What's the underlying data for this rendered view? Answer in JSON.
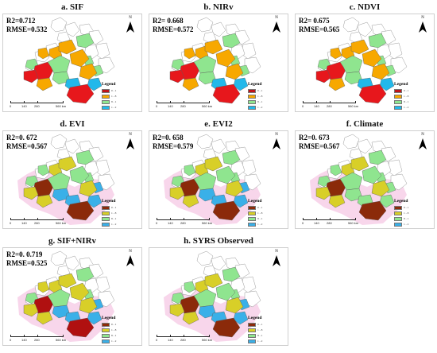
{
  "panels": [
    {
      "title": "a. SIF",
      "stats": [
        "R2=0.712",
        "RMSE=0.532"
      ],
      "colors": [
        "#e7171c",
        "#e7171c",
        "#8fe58f",
        "#f7a800",
        "#f7a800",
        "#8fe58f",
        "#8fe58f",
        "#f7a800",
        "#f7a800",
        "#22b8ea",
        "#22b8ea",
        "#e7171c"
      ],
      "pink": false
    },
    {
      "title": "b. NIRv",
      "stats": [
        "R2= 0.668",
        "RMSE=0.572"
      ],
      "colors": [
        "#e7171c",
        "#e7171c",
        "#8fe58f",
        "#f7a800",
        "#f7a800",
        "#8fe58f",
        "#8fe58f",
        "#f7a800",
        "#f7a800",
        "#22b8ea",
        "#22b8ea",
        "#e7171c"
      ],
      "pink": false
    },
    {
      "title": "c. NDVI",
      "stats": [
        "R2= 0.675",
        "RMSE=0.565"
      ],
      "colors": [
        "#e7171c",
        "#e7171c",
        "#8fe58f",
        "#f7a800",
        "#f7a800",
        "#8fe58f",
        "#8fe58f",
        "#f7a800",
        "#f7a800",
        "#22b8ea",
        "#22b8ea",
        "#e7171c"
      ],
      "pink": false
    },
    {
      "title": "d. EVI",
      "stats": [
        "R2=0. 672",
        "RMSE=0.567"
      ],
      "colors": [
        "#8b2a0a",
        "#d8cf28",
        "#8fe58f",
        "#8fe58f",
        "#d8cf28",
        "#8fe58f",
        "#3ab0e8",
        "#d8cf28",
        "#d8cf28",
        "#3ab0e8",
        "#3ab0e8",
        "#8b2a0a"
      ],
      "pink": true
    },
    {
      "title": "e. EVI2",
      "stats": [
        "R2=0. 658",
        "RMSE=0.579"
      ],
      "colors": [
        "#8b2a0a",
        "#d8cf28",
        "#8fe58f",
        "#8fe58f",
        "#d8cf28",
        "#8fe58f",
        "#3ab0e8",
        "#d8cf28",
        "#d8cf28",
        "#3ab0e8",
        "#3ab0e8",
        "#8b2a0a"
      ],
      "pink": true
    },
    {
      "title": "f. Climate",
      "stats": [
        "R2=0. 673",
        "RMSE=0.567"
      ],
      "colors": [
        "#8b2a0a",
        "#d8cf28",
        "#8fe58f",
        "#8fe58f",
        "#d8cf28",
        "#8fe58f",
        "#8fe58f",
        "#d8cf28",
        "#d8cf28",
        "#8fe58f",
        "#8fe58f",
        "#8b2a0a"
      ],
      "pink": true
    },
    {
      "title": "g. SIF+NIRv",
      "stats": [
        "R2=0. 0.719",
        "RMSE=0.525"
      ],
      "colors": [
        "#b01010",
        "#d8cf28",
        "#8fe58f",
        "#d8cf28",
        "#d8cf28",
        "#8fe58f",
        "#3ab0e8",
        "#d8cf28",
        "#d8cf28",
        "#3ab0e8",
        "#3ab0e8",
        "#b01010"
      ],
      "pink": true
    },
    {
      "title": "h. SYRS Observed",
      "stats": [],
      "colors": [
        "#8b2a0a",
        "#d8cf28",
        "#8fe58f",
        "#8fe58f",
        "#d8cf28",
        "#8fe58f",
        "#3ab0e8",
        "#d8cf28",
        "#d8cf28",
        "#3ab0e8",
        "#3ab0e8",
        "#8b2a0a"
      ],
      "pink": true
    }
  ],
  "north_label": "N",
  "legend": {
    "title": "Legend",
    "items": [
      {
        "label": "0 - 1",
        "color": "#c0141a"
      },
      {
        "label": "1 - 8",
        "color": "#f7a800"
      },
      {
        "label": "8 - 1",
        "color": "#8fe58f"
      },
      {
        "label": "1 - 2",
        "color": "#22b8ea"
      },
      {
        "label": "2 - 3",
        "color": "#0a1ed0"
      }
    ]
  },
  "legend_alt_colors": [
    "#8b2a0a",
    "#d8cf28",
    "#8fe58f",
    "#3ab0e8",
    "#0a1ed0"
  ],
  "scalebar": {
    "labels": [
      "0",
      "140",
      "280",
      "560 km"
    ]
  }
}
